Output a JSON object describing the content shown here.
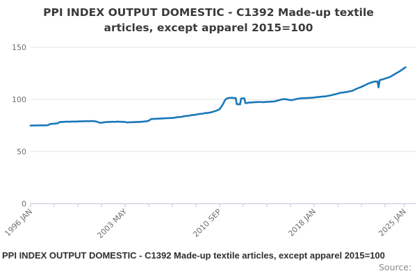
{
  "title": "PPI INDEX OUTPUT DOMESTIC - C1392 Made-up textile articles, except apparel 2015=100",
  "footer": {
    "caption": "PPI INDEX OUTPUT DOMESTIC - C1392 Made-up textile articles, except apparel 2015=100",
    "source": "Source:"
  },
  "colors": {
    "line": "#1878b8",
    "grid": "#e3e3e3",
    "axis": "#c6cedb",
    "tick_text": "#6e6e6e",
    "title_text": "#3a3a3a",
    "caption_text": "#2e2e2e",
    "source_text": "#8a8a8a"
  },
  "chart_data": {
    "type": "line",
    "frequency": "monthly",
    "x_start": "1996 JAN",
    "x_end": "2025 FEB",
    "ylim": [
      0,
      155
    ],
    "xlim_months": [
      0,
      352
    ],
    "grid": true,
    "y_ticks": [
      0,
      50,
      100,
      150
    ],
    "x_tick_labels": [
      {
        "month_index": 0,
        "label": "1996 JAN"
      },
      {
        "month_index": 88,
        "label": "2003 MAY"
      },
      {
        "month_index": 176,
        "label": "2010 SEP"
      },
      {
        "month_index": 264,
        "label": "2018 JAN"
      },
      {
        "month_index": 348,
        "label": "2025 JAN"
      }
    ],
    "minor_tick_month_indices": [
      0,
      22,
      44,
      66,
      88,
      110,
      132,
      154,
      176,
      198,
      220,
      242,
      264,
      286,
      308,
      330,
      348
    ],
    "line_color": "#1878b8",
    "values": [
      74.9,
      74.8,
      75.0,
      74.9,
      75.1,
      75.0,
      74.9,
      75.1,
      75.0,
      75.2,
      75.1,
      75.0,
      75.2,
      75.1,
      75.0,
      75.2,
      75.3,
      75.6,
      76.3,
      76.6,
      76.5,
      76.7,
      76.6,
      76.8,
      76.9,
      77.1,
      77.5,
      78.1,
      78.4,
      78.3,
      78.5,
      78.4,
      78.6,
      78.5,
      78.7,
      78.6,
      78.5,
      78.7,
      78.6,
      78.8,
      78.7,
      78.6,
      78.8,
      78.7,
      78.9,
      78.8,
      79.0,
      78.9,
      79.0,
      78.9,
      79.1,
      79.0,
      79.2,
      79.1,
      79.0,
      79.2,
      79.1,
      79.3,
      79.2,
      79.1,
      79.0,
      78.8,
      78.5,
      78.1,
      77.8,
      77.6,
      77.5,
      77.7,
      77.9,
      78.1,
      78.2,
      78.3,
      78.4,
      78.3,
      78.5,
      78.4,
      78.6,
      78.5,
      78.4,
      78.6,
      78.5,
      78.7,
      78.6,
      78.5,
      78.6,
      78.5,
      78.4,
      78.6,
      78.3,
      78.1,
      77.9,
      78.0,
      78.1,
      78.0,
      78.2,
      78.1,
      78.2,
      78.3,
      78.2,
      78.4,
      78.3,
      78.5,
      78.4,
      78.6,
      78.5,
      78.7,
      78.8,
      78.9,
      79.1,
      79.3,
      79.6,
      80.3,
      81.0,
      81.3,
      81.2,
      81.4,
      81.3,
      81.5,
      81.4,
      81.6,
      81.5,
      81.7,
      81.6,
      81.8,
      81.7,
      81.9,
      82.0,
      81.9,
      82.1,
      82.0,
      82.2,
      82.1,
      82.3,
      82.2,
      82.4,
      82.6,
      82.8,
      83.0,
      83.1,
      83.0,
      83.2,
      83.4,
      83.6,
      83.8,
      84.0,
      84.2,
      84.1,
      84.3,
      84.5,
      84.7,
      84.9,
      85.1,
      85.0,
      85.2,
      85.4,
      85.6,
      85.8,
      86.0,
      86.2,
      86.1,
      86.3,
      86.5,
      86.7,
      86.9,
      87.1,
      87.0,
      87.2,
      87.4,
      87.6,
      87.9,
      88.2,
      88.5,
      88.8,
      89.2,
      89.6,
      90.1,
      90.6,
      92.2,
      93.6,
      95.2,
      97.2,
      99.2,
      100.4,
      100.9,
      101.3,
      101.5,
      101.4,
      101.6,
      101.5,
      101.3,
      101.4,
      101.2,
      95.5,
      95.3,
      95.4,
      95.2,
      100.8,
      101.0,
      101.1,
      100.9,
      96.5,
      96.4,
      96.7,
      96.9,
      97.0,
      96.9,
      97.1,
      97.2,
      97.4,
      97.3,
      97.5,
      97.4,
      97.6,
      97.5,
      97.4,
      97.6,
      97.3,
      97.5,
      97.4,
      97.6,
      97.5,
      97.7,
      97.8,
      97.7,
      97.9,
      98.0,
      97.9,
      98.1,
      98.3,
      98.6,
      98.9,
      99.2,
      99.5,
      99.8,
      100.0,
      100.1,
      100.3,
      100.2,
      100.1,
      100.0,
      99.6,
      99.4,
      99.5,
      99.3,
      99.5,
      99.7,
      99.9,
      100.2,
      100.4,
      100.6,
      100.8,
      101.0,
      101.1,
      101.0,
      101.2,
      101.3,
      101.2,
      101.4,
      101.3,
      101.5,
      101.4,
      101.6,
      101.5,
      101.7,
      101.8,
      102.0,
      102.1,
      102.3,
      102.2,
      102.4,
      102.6,
      102.5,
      102.7,
      102.9,
      102.8,
      103.0,
      103.2,
      103.4,
      103.6,
      103.8,
      104.0,
      104.3,
      104.6,
      104.8,
      105.0,
      105.3,
      105.6,
      105.9,
      106.2,
      106.4,
      106.6,
      106.5,
      106.7,
      106.9,
      107.1,
      107.3,
      107.5,
      107.7,
      107.9,
      108.1,
      108.4,
      109.0,
      109.5,
      110.0,
      110.4,
      110.8,
      111.2,
      111.6,
      112.0,
      112.5,
      113.0,
      113.5,
      114.0,
      114.5,
      115.0,
      115.4,
      115.8,
      116.2,
      116.5,
      116.8,
      117.0,
      117.2,
      117.1,
      117.3,
      111.5,
      118.5,
      118.8,
      119.0,
      119.3,
      119.6,
      120.0,
      120.3,
      120.6,
      121.0,
      121.4,
      121.8,
      122.3,
      123.0,
      123.6,
      124.2,
      124.8,
      125.4,
      126.0,
      126.6,
      127.2,
      127.9,
      128.6,
      129.3,
      130.0,
      130.8
    ]
  }
}
